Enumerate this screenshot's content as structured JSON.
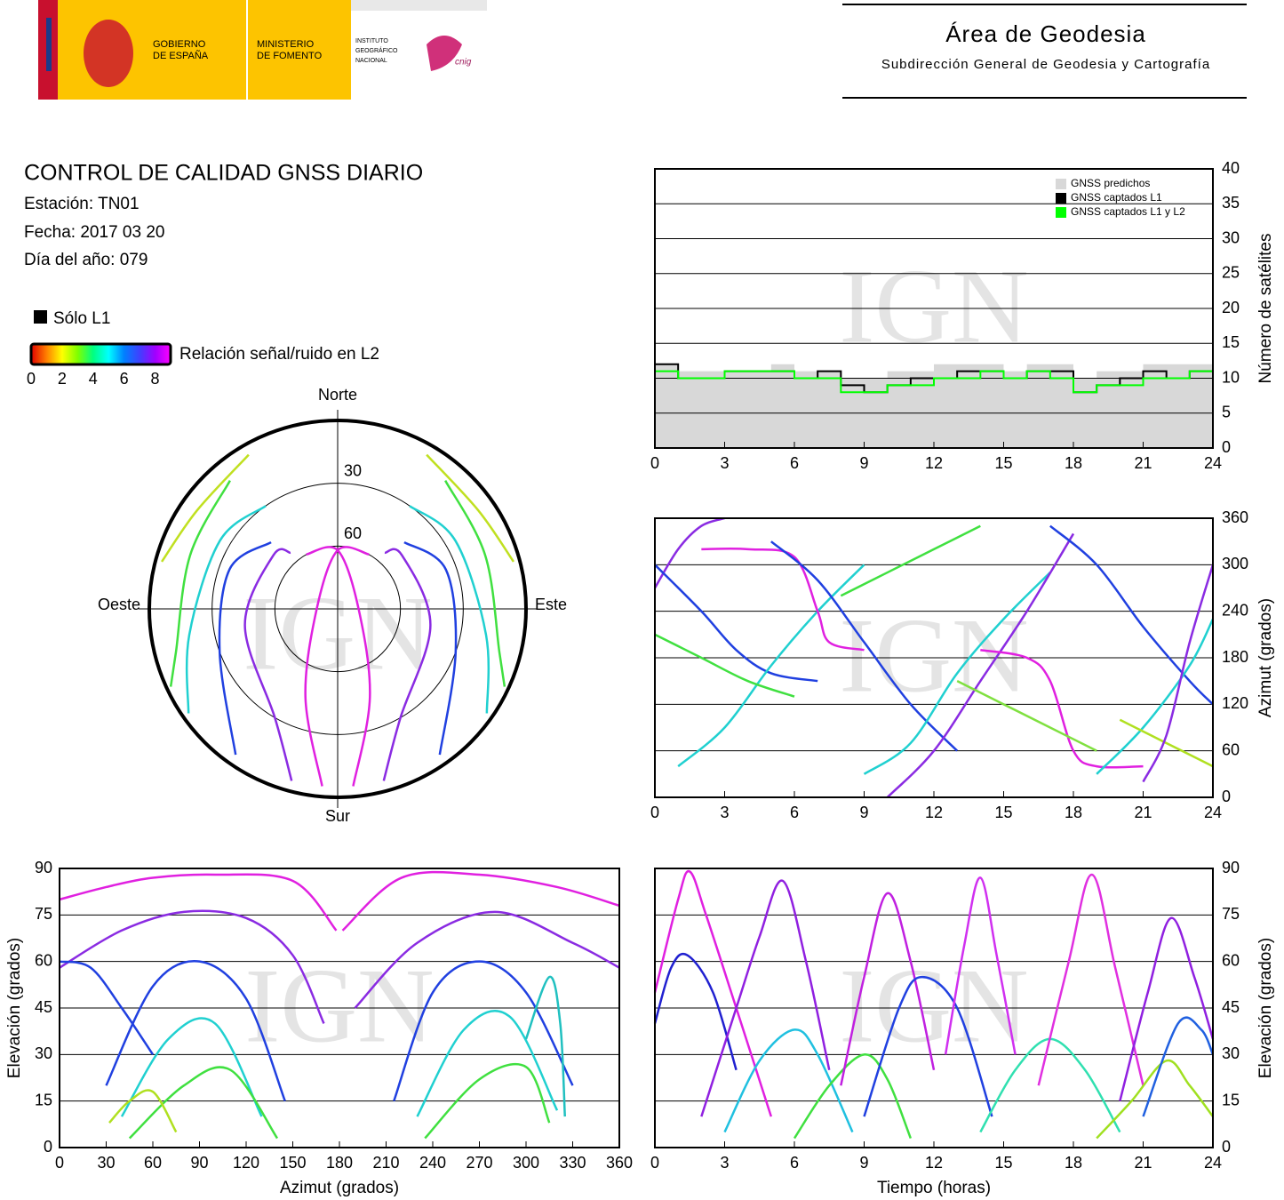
{
  "header": {
    "logo_gov": [
      "GOBIERNO",
      "DE ESPAÑA"
    ],
    "logo_min": [
      "MINISTERIO",
      "DE FOMENTO"
    ],
    "logo_ign": [
      "INSTITUTO",
      "GEOGRÁFICO",
      "NACIONAL"
    ],
    "logo_cnig": "cnig",
    "title": "Área de Geodesia",
    "subtitle": "Subdirección General de Geodesia y Cartografía"
  },
  "info": {
    "title": "CONTROL DE CALIDAD GNSS DIARIO",
    "station": "Estación: TN01",
    "date": "Fecha: 2017 03 20",
    "doy": "Día del año: 079"
  },
  "legend": {
    "l1_only": "Sólo L1",
    "l1_color": "#000000",
    "colorbar": {
      "label": "Relación señal/ruido en L2",
      "lim": [
        0,
        9
      ],
      "ticks": [
        0,
        2,
        4,
        6,
        8
      ],
      "colors": [
        "#e00000",
        "#ff8000",
        "#ffff00",
        "#80ff00",
        "#00ff80",
        "#00ffff",
        "#0080ff",
        "#4040ff",
        "#a000ff",
        "#ff00ff"
      ]
    }
  },
  "watermark": "IGN",
  "chart_data": [
    {
      "type": "step",
      "xlim": [
        0,
        24
      ],
      "xticks": [
        0,
        3,
        6,
        9,
        12,
        15,
        18,
        21,
        24
      ],
      "ylim": [
        0,
        40
      ],
      "yticks": [
        0,
        5,
        10,
        15,
        20,
        25,
        30,
        35,
        40
      ],
      "grid": true,
      "yaxis_side": "right",
      "ylabel": "Número de satélites",
      "legend": "upper right",
      "x": [
        0,
        1,
        2,
        3,
        4,
        5,
        6,
        7,
        8,
        9,
        10,
        11,
        12,
        13,
        14,
        15,
        16,
        17,
        18,
        19,
        20,
        21,
        22,
        23,
        24
      ],
      "series": [
        {
          "name": "GNSS predichos",
          "color": "#d8d8d8",
          "fill": true,
          "values": [
            12,
            11,
            11,
            11,
            11,
            12,
            11,
            11,
            10,
            10,
            11,
            11,
            12,
            12,
            12,
            11,
            12,
            12,
            10,
            11,
            11,
            12,
            12,
            12,
            13
          ]
        },
        {
          "name": "GNSS captados L1",
          "color": "#000000",
          "fill": false,
          "values": [
            12,
            10,
            10,
            11,
            11,
            11,
            10,
            11,
            9,
            8,
            9,
            10,
            10,
            11,
            11,
            10,
            11,
            11,
            8,
            9,
            10,
            11,
            10,
            11,
            12
          ]
        },
        {
          "name": "GNSS captados L1 y L2",
          "color": "#00ff00",
          "fill": false,
          "values": [
            11,
            10,
            10,
            11,
            11,
            11,
            10,
            10,
            8,
            8,
            9,
            9,
            10,
            10,
            11,
            10,
            11,
            10,
            8,
            9,
            9,
            10,
            10,
            11,
            11
          ]
        }
      ]
    },
    {
      "type": "polar",
      "rlim": [
        90,
        0
      ],
      "rticks": [
        30,
        60
      ],
      "directions": [
        "Norte",
        "Este",
        "Sur",
        "Oeste"
      ],
      "series": [
        {
          "color": "#e020e0",
          "azimuth": [
            330,
            0,
            90,
            160,
            175
          ],
          "elevation": [
            60,
            62,
            80,
            45,
            5
          ]
        },
        {
          "color": "#e020e0",
          "azimuth": [
            30,
            0,
            270,
            200,
            185
          ],
          "elevation": [
            60,
            62,
            80,
            45,
            5
          ]
        },
        {
          "color": "#8a2be2",
          "azimuth": [
            320,
            310,
            260,
            210,
            195
          ],
          "elevation": [
            55,
            50,
            45,
            30,
            5
          ]
        },
        {
          "color": "#8a2be2",
          "azimuth": [
            40,
            50,
            100,
            150,
            165
          ],
          "elevation": [
            55,
            50,
            45,
            30,
            5
          ]
        },
        {
          "color": "#2040e0",
          "azimuth": [
            315,
            290,
            250,
            215
          ],
          "elevation": [
            45,
            35,
            30,
            5
          ]
        },
        {
          "color": "#2040e0",
          "azimuth": [
            45,
            70,
            110,
            145
          ],
          "elevation": [
            45,
            35,
            30,
            5
          ]
        },
        {
          "color": "#20d0d0",
          "azimuth": [
            325,
            300,
            260,
            235
          ],
          "elevation": [
            30,
            25,
            18,
            3
          ]
        },
        {
          "color": "#20d0d0",
          "azimuth": [
            35,
            60,
            100,
            125
          ],
          "elevation": [
            30,
            25,
            18,
            3
          ]
        },
        {
          "color": "#40e040",
          "azimuth": [
            320,
            290,
            255,
            245
          ],
          "elevation": [
            10,
            15,
            10,
            2
          ]
        },
        {
          "color": "#40e040",
          "azimuth": [
            40,
            70,
            105,
            115
          ],
          "elevation": [
            10,
            15,
            10,
            2
          ]
        },
        {
          "color": "#c0e020",
          "azimuth": [
            330,
            305,
            285
          ],
          "elevation": [
            5,
            8,
            3
          ]
        },
        {
          "color": "#c0e020",
          "azimuth": [
            30,
            55,
            75
          ],
          "elevation": [
            5,
            8,
            3
          ]
        }
      ]
    },
    {
      "type": "line",
      "xlim": [
        0,
        24
      ],
      "xticks": [
        0,
        3,
        6,
        9,
        12,
        15,
        18,
        21,
        24
      ],
      "ylim": [
        0,
        360
      ],
      "yticks": [
        0,
        60,
        120,
        180,
        240,
        300,
        360
      ],
      "grid": true,
      "yaxis_side": "right",
      "ylabel": "Azimut (grados)",
      "series": [
        {
          "color": "#8a2be2",
          "x": [
            0,
            1,
            2,
            3
          ],
          "values": [
            270,
            320,
            350,
            360
          ]
        },
        {
          "color": "#2040e0",
          "x": [
            0,
            2,
            3.5,
            5,
            7
          ],
          "values": [
            300,
            240,
            190,
            160,
            150
          ]
        },
        {
          "color": "#20d0d0",
          "x": [
            1,
            3,
            5,
            7,
            9
          ],
          "values": [
            40,
            90,
            170,
            240,
            300
          ]
        },
        {
          "color": "#40e040",
          "x": [
            0,
            2,
            4,
            6
          ],
          "values": [
            210,
            180,
            150,
            130
          ]
        },
        {
          "color": "#e020e0",
          "x": [
            2,
            4,
            6,
            7,
            7.5,
            9
          ],
          "values": [
            320,
            320,
            310,
            240,
            200,
            190
          ]
        },
        {
          "color": "#2040e0",
          "x": [
            5,
            7,
            9,
            11,
            13
          ],
          "values": [
            330,
            280,
            200,
            120,
            60
          ]
        },
        {
          "color": "#40e040",
          "x": [
            8,
            10,
            12,
            14
          ],
          "values": [
            260,
            290,
            320,
            350
          ]
        },
        {
          "color": "#20d0d0",
          "x": [
            9,
            11,
            13,
            15,
            17
          ],
          "values": [
            30,
            70,
            160,
            230,
            290
          ]
        },
        {
          "color": "#8a2be2",
          "x": [
            10,
            12,
            14,
            16,
            18
          ],
          "values": [
            0,
            60,
            150,
            240,
            340
          ]
        },
        {
          "color": "#e020e0",
          "x": [
            14,
            16,
            17,
            18,
            19,
            21
          ],
          "values": [
            190,
            180,
            150,
            60,
            40,
            40
          ]
        },
        {
          "color": "#80e040",
          "x": [
            13,
            15,
            17,
            19
          ],
          "values": [
            150,
            120,
            90,
            60
          ]
        },
        {
          "color": "#2040e0",
          "x": [
            17,
            19,
            21,
            23,
            24
          ],
          "values": [
            350,
            300,
            220,
            150,
            120
          ]
        },
        {
          "color": "#20d0d0",
          "x": [
            19,
            21,
            23,
            24
          ],
          "values": [
            30,
            90,
            170,
            230
          ]
        },
        {
          "color": "#b0e020",
          "x": [
            20,
            22,
            24
          ],
          "values": [
            100,
            70,
            40
          ]
        },
        {
          "color": "#8a2be2",
          "x": [
            21,
            22,
            23,
            24
          ],
          "values": [
            20,
            80,
            200,
            300
          ]
        }
      ]
    },
    {
      "type": "line",
      "xlim": [
        0,
        360
      ],
      "xticks": [
        0,
        30,
        60,
        90,
        120,
        150,
        180,
        210,
        240,
        270,
        300,
        330,
        360
      ],
      "ylim": [
        0,
        90
      ],
      "yticks": [
        0,
        15,
        30,
        45,
        60,
        75,
        90
      ],
      "grid": true,
      "yaxis_side": "left",
      "ylabel": "Elevación (grados)",
      "xlabel": "Azimut (grados)",
      "series": [
        {
          "color": "#e020e0",
          "x": [
            0,
            30,
            60,
            100,
            150,
            178
          ],
          "values": [
            80,
            84,
            87,
            88,
            86,
            70
          ]
        },
        {
          "color": "#e020e0",
          "x": [
            182,
            220,
            270,
            320,
            360
          ],
          "values": [
            70,
            87,
            88,
            84,
            78
          ]
        },
        {
          "color": "#8a2be2",
          "x": [
            0,
            40,
            80,
            120,
            150,
            170
          ],
          "values": [
            58,
            70,
            76,
            74,
            62,
            40
          ]
        },
        {
          "color": "#8a2be2",
          "x": [
            190,
            230,
            280,
            330,
            360
          ],
          "values": [
            45,
            66,
            76,
            66,
            58
          ]
        },
        {
          "color": "#2040e0",
          "x": [
            30,
            60,
            90,
            120,
            145
          ],
          "values": [
            20,
            52,
            60,
            48,
            15
          ]
        },
        {
          "color": "#2040e0",
          "x": [
            215,
            240,
            270,
            300,
            330
          ],
          "values": [
            15,
            50,
            60,
            50,
            20
          ]
        },
        {
          "color": "#20d0d0",
          "x": [
            40,
            70,
            100,
            130
          ],
          "values": [
            10,
            35,
            40,
            10
          ]
        },
        {
          "color": "#20d0d0",
          "x": [
            230,
            260,
            290,
            320
          ],
          "values": [
            10,
            38,
            42,
            12
          ]
        },
        {
          "color": "#40e040",
          "x": [
            45,
            80,
            110,
            140
          ],
          "values": [
            3,
            20,
            25,
            3
          ]
        },
        {
          "color": "#40e040",
          "x": [
            235,
            270,
            300,
            315
          ],
          "values": [
            3,
            22,
            26,
            8
          ]
        },
        {
          "color": "#b0e020",
          "x": [
            32,
            45,
            60,
            75
          ],
          "values": [
            8,
            15,
            18,
            5
          ]
        },
        {
          "color": "#20c0c0",
          "x": [
            300,
            315,
            322,
            325
          ],
          "values": [
            35,
            55,
            40,
            10
          ]
        },
        {
          "color": "#2040e0",
          "x": [
            0,
            20,
            40,
            60
          ],
          "values": [
            60,
            58,
            45,
            30
          ]
        }
      ]
    },
    {
      "type": "line",
      "xlim": [
        0,
        24
      ],
      "xticks": [
        0,
        3,
        6,
        9,
        12,
        15,
        18,
        21,
        24
      ],
      "ylim": [
        0,
        90
      ],
      "yticks": [
        0,
        15,
        30,
        45,
        60,
        75,
        90
      ],
      "grid": true,
      "yaxis_side": "right",
      "ylabel": "Elevación (grados)",
      "xlabel": "Tiempo (horas)",
      "series": [
        {
          "color": "#e020e0",
          "x": [
            0,
            1,
            1.5,
            2.2,
            3.5,
            5
          ],
          "values": [
            50,
            80,
            89,
            75,
            45,
            10
          ]
        },
        {
          "color": "#2020d0",
          "x": [
            0,
            0.7,
            1.4,
            2.5,
            3.5
          ],
          "values": [
            40,
            58,
            62,
            50,
            25
          ]
        },
        {
          "color": "#9020e0",
          "x": [
            2,
            3.5,
            4.5,
            5.5,
            6.5,
            7.5
          ],
          "values": [
            10,
            45,
            68,
            86,
            60,
            25
          ]
        },
        {
          "color": "#20c0e0",
          "x": [
            3,
            4.5,
            6,
            7,
            8.5
          ],
          "values": [
            5,
            28,
            38,
            30,
            5
          ]
        },
        {
          "color": "#40e040",
          "x": [
            6,
            7.5,
            9,
            10,
            11
          ],
          "values": [
            3,
            20,
            30,
            22,
            3
          ]
        },
        {
          "color": "#c020e0",
          "x": [
            8,
            9,
            10,
            11,
            12
          ],
          "values": [
            20,
            55,
            82,
            60,
            25
          ]
        },
        {
          "color": "#2040e0",
          "x": [
            9,
            10.5,
            11.5,
            13,
            14.5
          ],
          "values": [
            10,
            45,
            55,
            45,
            10
          ]
        },
        {
          "color": "#d030f0",
          "x": [
            12.5,
            13.3,
            14,
            14.7,
            15.5
          ],
          "values": [
            30,
            65,
            87,
            62,
            30
          ]
        },
        {
          "color": "#30e0b0",
          "x": [
            14,
            15.5,
            17,
            18.5,
            20
          ],
          "values": [
            5,
            25,
            35,
            25,
            5
          ]
        },
        {
          "color": "#e030e0",
          "x": [
            16.5,
            17.8,
            18.8,
            19.8,
            21
          ],
          "values": [
            20,
            60,
            88,
            58,
            20
          ]
        },
        {
          "color": "#9020e0",
          "x": [
            20,
            21.2,
            22.2,
            23.2,
            24
          ],
          "values": [
            15,
            50,
            74,
            55,
            35
          ]
        },
        {
          "color": "#a0e020",
          "x": [
            19,
            20.5,
            22,
            23,
            24
          ],
          "values": [
            3,
            15,
            28,
            20,
            10
          ]
        },
        {
          "color": "#2060e0",
          "x": [
            21,
            22.5,
            23.5,
            24
          ],
          "values": [
            10,
            40,
            38,
            30
          ]
        }
      ]
    }
  ]
}
